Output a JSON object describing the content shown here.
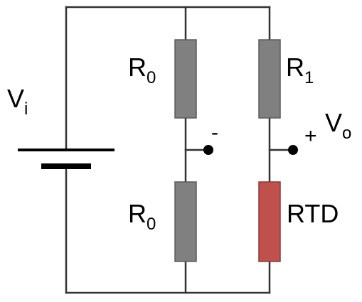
{
  "colors": {
    "wire": "#333333",
    "resistor_fill": "#808080",
    "resistor_stroke": "#5a5a5a",
    "rtd_fill": "#c0504d",
    "rtd_stroke": "#8c3836",
    "terminal": "#000000"
  },
  "labels": {
    "source_main": "V",
    "source_sub": "i",
    "r_top_left_main": "R",
    "r_top_left_sub": "0",
    "r_bottom_left_main": "R",
    "r_bottom_left_sub": "0",
    "r_top_right_main": "R",
    "r_top_right_sub": "1",
    "rtd": "RTD",
    "output_main": "V",
    "output_sub": "o",
    "minus_sign": "-",
    "plus_sign": "+"
  },
  "components": [
    {
      "id": "battery",
      "type": "dc-source"
    },
    {
      "id": "R0-top",
      "type": "resistor"
    },
    {
      "id": "R0-bottom",
      "type": "resistor"
    },
    {
      "id": "R1",
      "type": "resistor"
    },
    {
      "id": "RTD",
      "type": "rtd-sensor"
    }
  ]
}
